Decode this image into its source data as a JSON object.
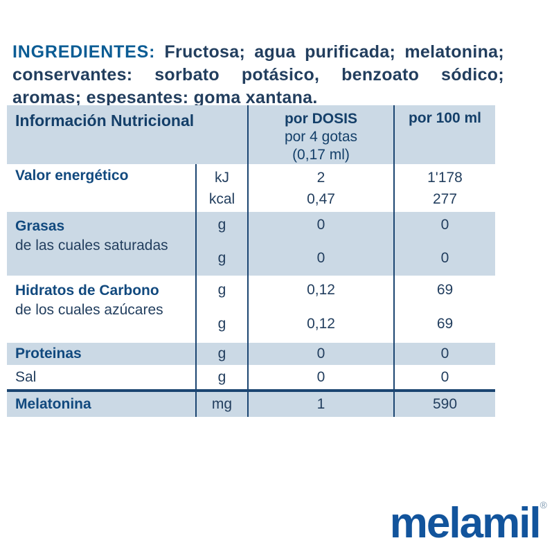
{
  "ingredients": {
    "heading": "INGREDIENTES:",
    "text": "Fructosa; agua purificada; melatonina; conservantes: sorbato potásico, benzoato sódico; aromas; espesantes: goma xantana."
  },
  "table": {
    "header": {
      "info": "Información Nutricional",
      "dose_line1": "por DOSIS",
      "dose_line2": "por 4 gotas",
      "dose_line3": "(0,17 ml)",
      "per100": "por 100 ml"
    },
    "rows": [
      {
        "label": "Valor energético",
        "sublabel": "",
        "units": [
          "kJ",
          "kcal"
        ],
        "dose": [
          "2",
          "0,47"
        ],
        "per100": [
          "1'178",
          "277"
        ]
      },
      {
        "label": "Grasas",
        "sublabel": "de las cuales saturadas",
        "units": [
          "g",
          "g"
        ],
        "dose": [
          "0",
          "0"
        ],
        "per100": [
          "0",
          "0"
        ]
      },
      {
        "label": "Hidratos de Carbono",
        "sublabel": "de los cuales azúcares",
        "units": [
          "g",
          "g"
        ],
        "dose": [
          "0,12",
          "0,12"
        ],
        "per100": [
          "69",
          "69"
        ]
      },
      {
        "label": "Proteinas",
        "units": [
          "g"
        ],
        "dose": [
          "0"
        ],
        "per100": [
          "0"
        ]
      },
      {
        "label": "Sal",
        "units": [
          "g"
        ],
        "dose": [
          "0"
        ],
        "per100": [
          "0"
        ]
      },
      {
        "label": "Melatonina",
        "units": [
          "mg"
        ],
        "dose": [
          "1"
        ],
        "per100": [
          "590"
        ]
      }
    ]
  },
  "brand": {
    "logo_text": "melamil",
    "registered_mark": "®"
  },
  "colors": {
    "stripe_blue": "#cbd9e5",
    "text_navy": "#223e5e",
    "label_blue": "#11497e",
    "heading_accent": "#0b5c94",
    "divider_navy": "#1b4571",
    "logo_blue": "#12549c"
  }
}
